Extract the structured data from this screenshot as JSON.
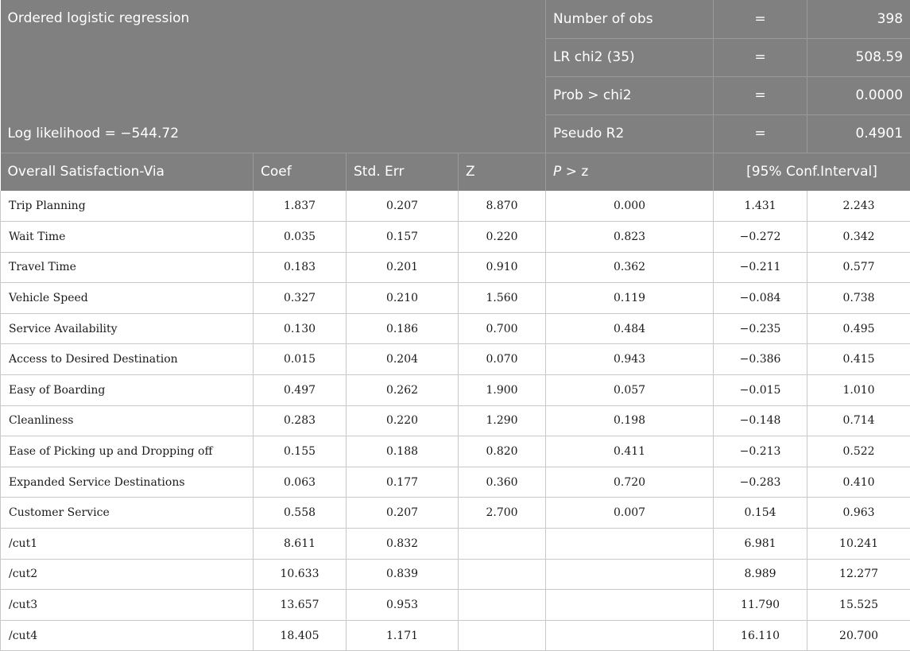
{
  "header": {
    "title": "Ordered logistic regression",
    "log_likelihood": "Log likelihood = −544.72",
    "stats": [
      {
        "label": "Number of obs",
        "eq": "=",
        "value": "398"
      },
      {
        "label": "LR chi2 (35)",
        "eq": "=",
        "value": "508.59"
      },
      {
        "label": "Prob > chi2",
        "eq": "=",
        "value": "0.0000"
      },
      {
        "label": "Pseudo R2",
        "eq": "=",
        "value": "0.4901"
      }
    ]
  },
  "columns": {
    "variable": "Overall Satisfaction-Via",
    "coef": "Coef",
    "std_err": "Std. Err",
    "z": "Z",
    "p_italic": "P",
    "p_rest": " > z",
    "ci": "[95% Conf.Interval]"
  },
  "rows": [
    {
      "name": "Trip Planning",
      "coef": "1.837",
      "se": "0.207",
      "z": "8.870",
      "p": "0.000",
      "lo": "1.431",
      "hi": "2.243"
    },
    {
      "name": "Wait Time",
      "coef": "0.035",
      "se": "0.157",
      "z": "0.220",
      "p": "0.823",
      "lo": "−0.272",
      "hi": "0.342"
    },
    {
      "name": "Travel Time",
      "coef": "0.183",
      "se": "0.201",
      "z": "0.910",
      "p": "0.362",
      "lo": "−0.211",
      "hi": "0.577"
    },
    {
      "name": "Vehicle Speed",
      "coef": "0.327",
      "se": "0.210",
      "z": "1.560",
      "p": "0.119",
      "lo": "−0.084",
      "hi": "0.738"
    },
    {
      "name": "Service Availability",
      "coef": "0.130",
      "se": "0.186",
      "z": "0.700",
      "p": "0.484",
      "lo": "−0.235",
      "hi": "0.495"
    },
    {
      "name": "Access to Desired Destination",
      "coef": "0.015",
      "se": "0.204",
      "z": "0.070",
      "p": "0.943",
      "lo": "−0.386",
      "hi": "0.415"
    },
    {
      "name": "Easy of Boarding",
      "coef": "0.497",
      "se": "0.262",
      "z": "1.900",
      "p": "0.057",
      "lo": "−0.015",
      "hi": "1.010"
    },
    {
      "name": "Cleanliness",
      "coef": "0.283",
      "se": "0.220",
      "z": "1.290",
      "p": "0.198",
      "lo": "−0.148",
      "hi": "0.714"
    },
    {
      "name": "Ease of Picking up and Dropping off",
      "coef": "0.155",
      "se": "0.188",
      "z": "0.820",
      "p": "0.411",
      "lo": "−0.213",
      "hi": "0.522"
    },
    {
      "name": "Expanded Service Destinations",
      "coef": "0.063",
      "se": "0.177",
      "z": "0.360",
      "p": "0.720",
      "lo": "−0.283",
      "hi": "0.410"
    },
    {
      "name": "Customer Service",
      "coef": "0.558",
      "se": "0.207",
      "z": "2.700",
      "p": "0.007",
      "lo": "0.154",
      "hi": "0.963"
    },
    {
      "name": "/cut1",
      "coef": "8.611",
      "se": "0.832",
      "z": "",
      "p": "",
      "lo": "6.981",
      "hi": "10.241"
    },
    {
      "name": "/cut2",
      "coef": "10.633",
      "se": "0.839",
      "z": "",
      "p": "",
      "lo": "8.989",
      "hi": "12.277"
    },
    {
      "name": "/cut3",
      "coef": "13.657",
      "se": "0.953",
      "z": "",
      "p": "",
      "lo": "11.790",
      "hi": "15.525"
    },
    {
      "name": "/cut4",
      "coef": "18.405",
      "se": "1.171",
      "z": "",
      "p": "",
      "lo": "16.110",
      "hi": "20.700"
    }
  ]
}
